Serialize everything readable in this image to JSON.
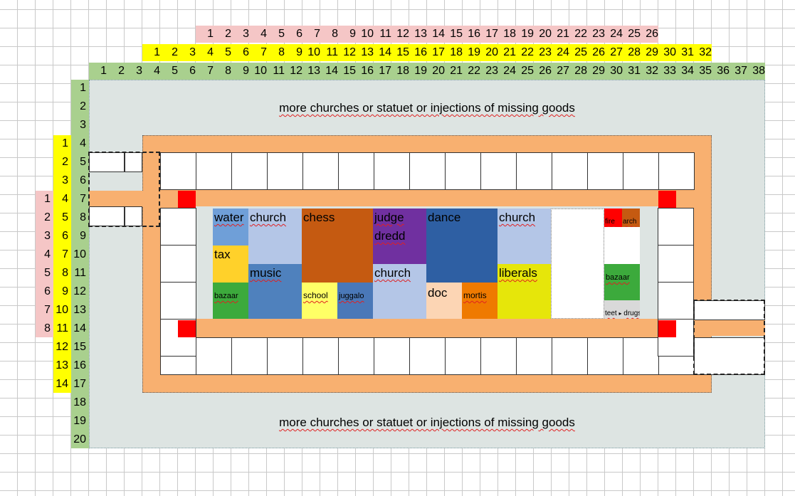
{
  "row_pink": {
    "start": 1,
    "end": 26
  },
  "row_yellow": {
    "start": 1,
    "end": 32
  },
  "row_green": {
    "start": 1,
    "end": 38
  },
  "col_pink": {
    "start": 1,
    "end": 8
  },
  "col_yellow": {
    "start": 1,
    "end": 14
  },
  "col_green": {
    "start": 1,
    "end": 20
  },
  "banner_top": "more churches or statuet or injections of missing goods",
  "banner_bottom": "more churches or statuet or injections of missing goods",
  "blocks": {
    "water": "water",
    "church1": "church",
    "chess": "chess",
    "judge": "judge dredd",
    "dance": "dance",
    "church2": "church",
    "tax": "tax",
    "music": "music",
    "church3": "church",
    "liberals": "liberals",
    "bazaar1": "bazaar",
    "school": "school",
    "juggalo": "juggalo",
    "doc": "doc",
    "mortis": "mortis",
    "fire": "fire",
    "arch": "arch",
    "bazaar2": "bazaar",
    "teet": "teet",
    "drugs": "drugs"
  },
  "colors": {
    "pink_header": "#f5c6c6",
    "yellow_header": "#ffff00",
    "green_header": "#a9d08e",
    "zone": "#dde4e2",
    "road": "#f8b070",
    "water": "#6f9fd8",
    "church": "#b4c6e7",
    "chess": "#c55a11",
    "judge": "#7030a0",
    "dance": "#2e5fa3",
    "tax": "#ffd12a",
    "music": "#4f81bd",
    "liberals": "#e6e60a",
    "bazaar": "#3caa3c",
    "school": "#ffff66",
    "juggalo": "#4a78b8",
    "doc": "#fcd5b4",
    "mortis": "#ef7a00",
    "fire": "#ff0000",
    "arch": "#c55a11",
    "teet": "#d9d9d9"
  }
}
